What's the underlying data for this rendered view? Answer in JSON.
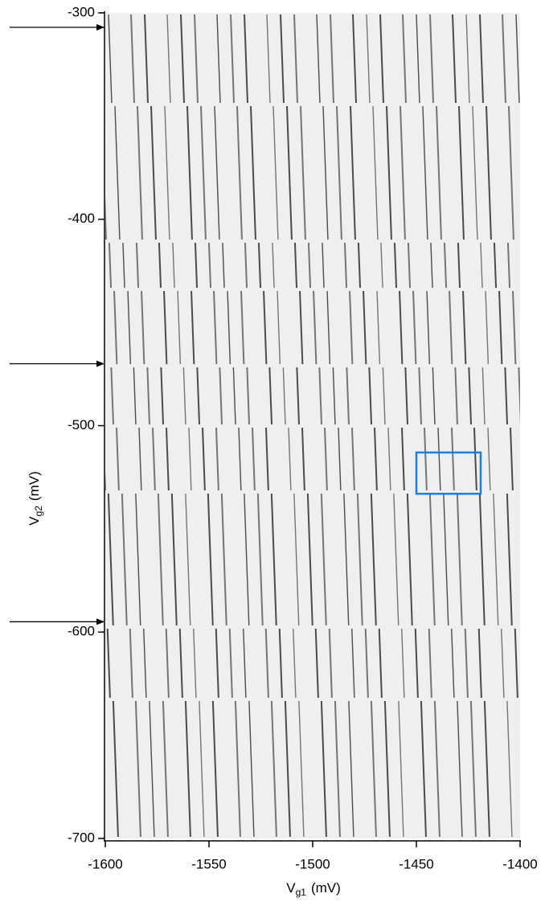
{
  "chart_data": {
    "type": "image",
    "x_label": {
      "main": "V",
      "sub": "g1",
      "unit": "(mV)"
    },
    "y_label": {
      "main": "V",
      "sub": "g2",
      "unit": "(mV)"
    },
    "xlim": [
      -1600,
      -1400
    ],
    "xticks": [
      -1600,
      -1550,
      -1500,
      -1450,
      -1400
    ],
    "ylim": [
      -700,
      -300
    ],
    "yticks": [
      -700,
      -600,
      -500,
      -400,
      -300
    ],
    "arrows": [
      -307,
      -470,
      -595
    ],
    "arrow_color": "#000000",
    "highlight_box": {
      "x": [
        -1450,
        -1419
      ],
      "y": [
        -533,
        -513
      ],
      "color": "#1a7fe8"
    }
  }
}
